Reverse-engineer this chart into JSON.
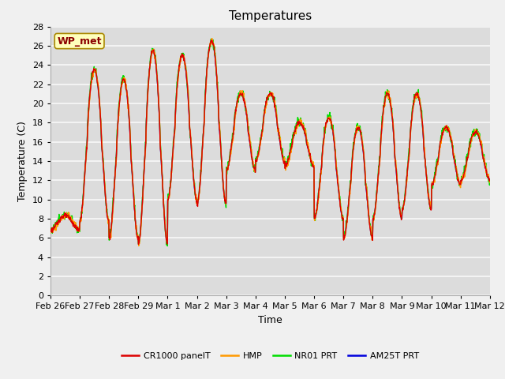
{
  "title": "Temperatures",
  "ylabel": "Temperature (C)",
  "xlabel": "Time",
  "station_label": "WP_met",
  "ylim": [
    0,
    28
  ],
  "yticks": [
    0,
    2,
    4,
    6,
    8,
    10,
    12,
    14,
    16,
    18,
    20,
    22,
    24,
    26,
    28
  ],
  "x_tick_labels": [
    "Feb 26",
    "Feb 27",
    "Feb 28",
    "Feb 29",
    "Mar 1",
    "Mar 2",
    "Mar 3",
    "Mar 4",
    "Mar 5",
    "Mar 6",
    "Mar 7",
    "Mar 8",
    "Mar 9",
    "Mar 10",
    "Mar 11",
    "Mar 12"
  ],
  "series_colors": {
    "CR1000 panelT": "#dd0000",
    "HMP": "#ff9900",
    "NR01 PRT": "#00dd00",
    "AM25T PRT": "#0000dd"
  },
  "bg_color": "#dcdcdc",
  "plot_bg_color": "#dcdcdc",
  "fig_bg_color": "#f0f0f0",
  "grid_color": "#f8f8f8",
  "title_fontsize": 11,
  "label_fontsize": 9,
  "tick_fontsize": 8
}
